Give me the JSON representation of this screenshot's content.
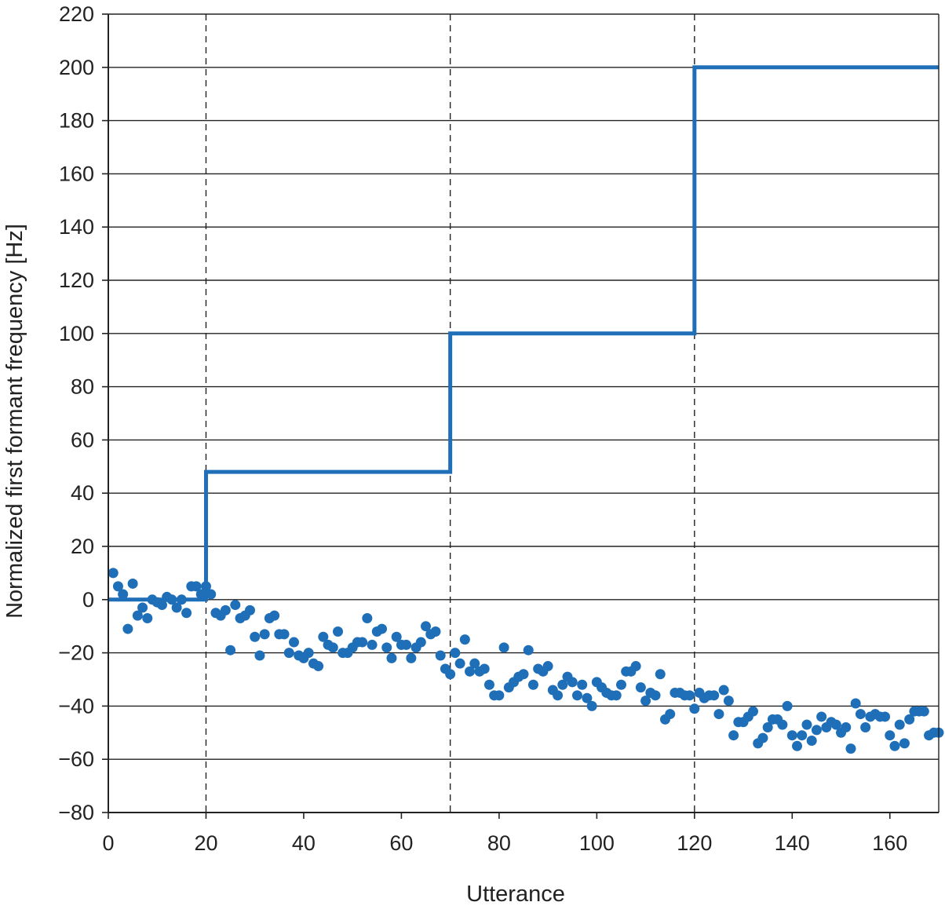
{
  "chart_data": {
    "type": "scatter",
    "title": "",
    "xlabel": "Utterance",
    "ylabel": "Normalized first formant frequency [Hz]",
    "xlim": [
      0,
      170
    ],
    "ylim": [
      -80,
      220
    ],
    "x_ticks": [
      0,
      20,
      40,
      60,
      80,
      100,
      120,
      140,
      160
    ],
    "y_ticks": [
      -80,
      -60,
      -40,
      -20,
      0,
      20,
      40,
      60,
      80,
      100,
      120,
      140,
      160,
      180,
      200,
      220
    ],
    "grid": "horizontal",
    "phase_boundaries": [
      20,
      70,
      120
    ],
    "colors": {
      "series": "#1f6fb8",
      "grid": "#222222",
      "axis": "#222222"
    },
    "series": [
      {
        "kind": "step-line",
        "points": [
          [
            0,
            0
          ],
          [
            20,
            0
          ],
          [
            20,
            48
          ],
          [
            70,
            48
          ],
          [
            70,
            100
          ],
          [
            120,
            100
          ],
          [
            120,
            200
          ],
          [
            170,
            200
          ]
        ]
      },
      {
        "kind": "scatter",
        "x": [
          1,
          2,
          3,
          4,
          5,
          6,
          7,
          8,
          9,
          10,
          11,
          12,
          13,
          14,
          15,
          16,
          17,
          18,
          19,
          20,
          21,
          22,
          23,
          24,
          25,
          26,
          27,
          28,
          29,
          30,
          31,
          32,
          33,
          34,
          35,
          36,
          37,
          38,
          39,
          40,
          41,
          42,
          43,
          44,
          45,
          46,
          47,
          48,
          49,
          50,
          51,
          52,
          53,
          54,
          55,
          56,
          57,
          58,
          59,
          60,
          61,
          62,
          63,
          64,
          65,
          66,
          67,
          68,
          69,
          70,
          71,
          72,
          73,
          74,
          75,
          76,
          77,
          78,
          79,
          80,
          81,
          82,
          83,
          84,
          85,
          86,
          87,
          88,
          89,
          90,
          91,
          92,
          93,
          94,
          95,
          96,
          97,
          98,
          99,
          100,
          101,
          102,
          103,
          104,
          105,
          106,
          107,
          108,
          109,
          110,
          111,
          112,
          113,
          114,
          115,
          116,
          117,
          118,
          119,
          120,
          121,
          122,
          123,
          124,
          125,
          126,
          127,
          128,
          129,
          130,
          131,
          132,
          133,
          134,
          135,
          136,
          137,
          138,
          139,
          140,
          141,
          142,
          143,
          144,
          145,
          146,
          147,
          148,
          149,
          150,
          151,
          152,
          153,
          154,
          155,
          156,
          157,
          158,
          159,
          160,
          161,
          162,
          163,
          164,
          165,
          166,
          167,
          168,
          169,
          170
        ],
        "y": [
          10,
          5,
          2,
          -11,
          6,
          -6,
          -3,
          -7,
          0,
          -1,
          -2,
          1,
          0,
          -3,
          0,
          -5,
          5,
          5,
          2,
          5,
          2,
          -5,
          -6,
          -4,
          -19,
          -2,
          -7,
          -6,
          -4,
          -14,
          -21,
          -13,
          -7,
          -6,
          -13,
          -13,
          -20,
          -16,
          -21,
          -22,
          -20,
          -24,
          -25,
          -14,
          -17,
          -18,
          -12,
          -20,
          -20,
          -18,
          -16,
          -16,
          -7,
          -17,
          -12,
          -11,
          -18,
          -22,
          -14,
          -17,
          -17,
          -22,
          -18,
          -16,
          -10,
          -13,
          -12,
          -21,
          -26,
          -28,
          -20,
          -24,
          -15,
          -27,
          -24,
          -27,
          -26,
          -32,
          -36,
          -36,
          -18,
          -33,
          -31,
          -29,
          -28,
          -19,
          -32,
          -26,
          -27,
          -25,
          -34,
          -36,
          -32,
          -29,
          -31,
          -36,
          -32,
          -37,
          -40,
          -31,
          -33,
          -35,
          -36,
          -36,
          -32,
          -27,
          -27,
          -25,
          -33,
          -38,
          -35,
          -36,
          -28,
          -45,
          -43,
          -35,
          -35,
          -36,
          -36,
          -41,
          -35,
          -37,
          -36,
          -36,
          -43,
          -34,
          -38,
          -51,
          -46,
          -46,
          -44,
          -42,
          -54,
          -52,
          -48,
          -45,
          -45,
          -47,
          -40,
          -51,
          -55,
          -51,
          -47,
          -53,
          -49,
          -44,
          -48,
          -46,
          -47,
          -50,
          -48,
          -56,
          -39,
          -43,
          -48,
          -44,
          -43,
          -44,
          -44,
          -51,
          -55,
          -47,
          -54,
          -45,
          -42,
          -42,
          -42,
          -51,
          -50,
          -50
        ]
      }
    ]
  }
}
